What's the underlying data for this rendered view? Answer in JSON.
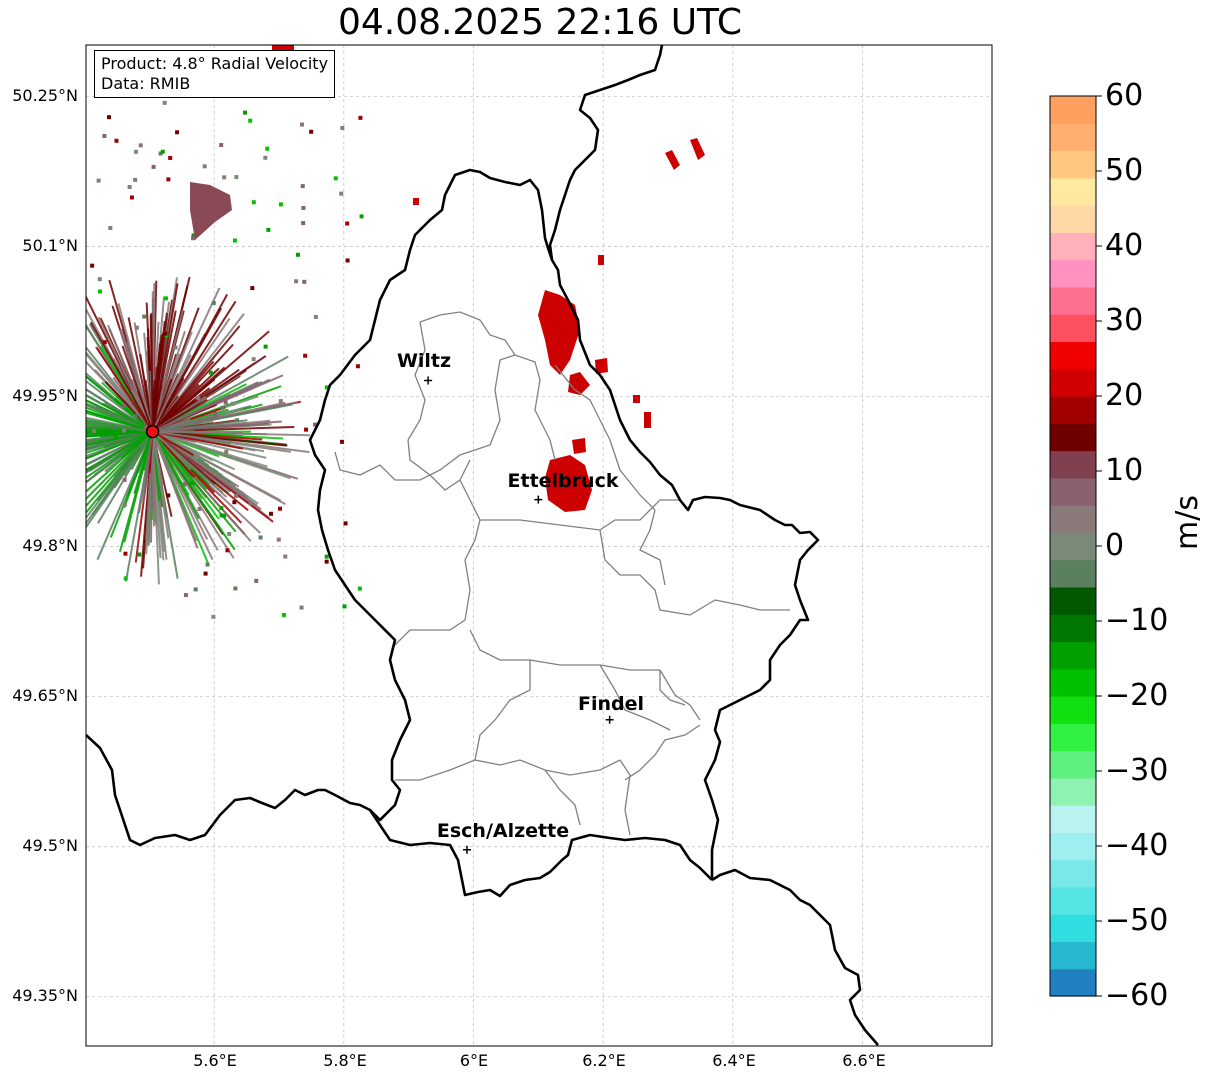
{
  "title": "04.08.2025 22:16 UTC",
  "info": {
    "product": "Product: 4.8° Radial Velocity",
    "source": "Data: RMIB"
  },
  "axes": {
    "lat_ticks": [
      "50.25°N",
      "50.1°N",
      "49.95°N",
      "49.8°N",
      "49.65°N",
      "49.5°N",
      "49.35°N"
    ],
    "lon_ticks": [
      "5.6°E",
      "5.8°E",
      "6°E",
      "6.2°E",
      "6.4°E",
      "6.6°E"
    ]
  },
  "cities": [
    {
      "name": "Wiltz",
      "lon": 5.93,
      "lat": 49.966
    },
    {
      "name": "Ettelbruck",
      "lon": 6.1,
      "lat": 49.847
    },
    {
      "name": "Findel",
      "lon": 6.21,
      "lat": 49.627
    },
    {
      "name": "Esch/Alzette",
      "lon": 5.99,
      "lat": 49.497
    }
  ],
  "radar_site": {
    "lon": 5.505,
    "lat": 49.915,
    "color": "#ee1111"
  },
  "colorbar": {
    "label": "m/s",
    "ticks": [
      "60",
      "50",
      "40",
      "30",
      "20",
      "10",
      "0",
      "−10",
      "−20",
      "−30",
      "−40",
      "−50",
      "−60"
    ],
    "range": [
      -60,
      60
    ],
    "colors": [
      "#2080c0",
      "#25b8d0",
      "#30dde0",
      "#55e5e5",
      "#7ae8e8",
      "#9ef0f0",
      "#bbf2f2",
      "#90f2b0",
      "#60f080",
      "#30f040",
      "#10e010",
      "#00c000",
      "#00a000",
      "#007800",
      "#005800",
      "#5a8060",
      "#7a8a78",
      "#8a7a7a",
      "#886070",
      "#804050",
      "#700000",
      "#a00000",
      "#d00000",
      "#f00000",
      "#ff5060",
      "#ff7090",
      "#ff90c0",
      "#ffb0b8",
      "#ffd8a8",
      "#ffe8a0",
      "#ffc880",
      "#ffb070",
      "#ffa060"
    ]
  },
  "colors": {
    "precip_red": "#cc0000",
    "border_black": "#000000",
    "border_gray": "#808080"
  }
}
